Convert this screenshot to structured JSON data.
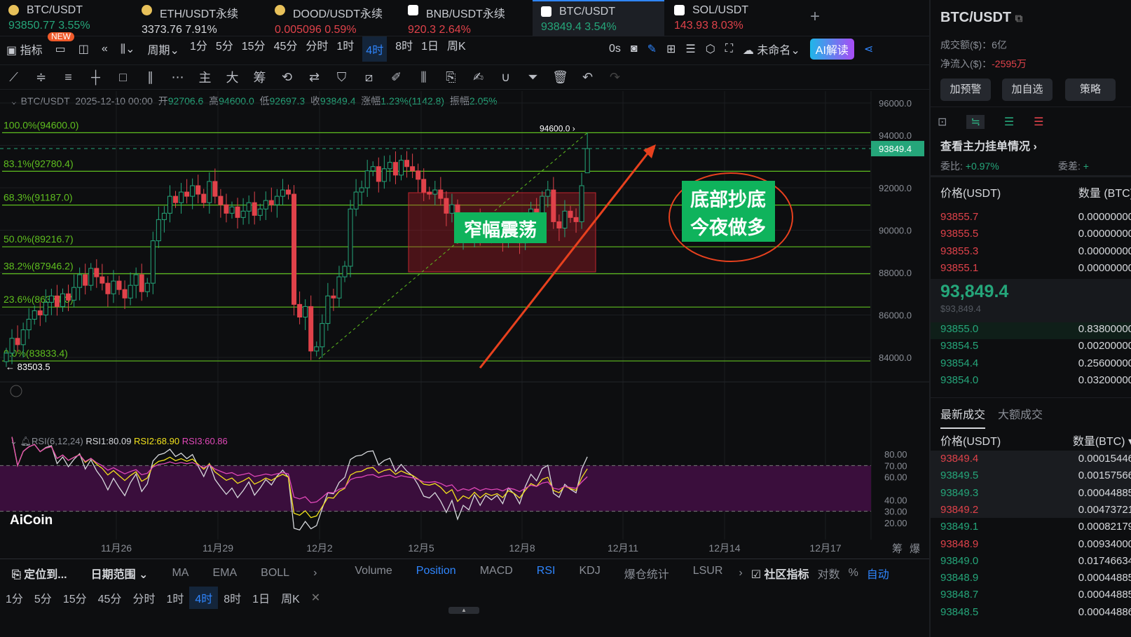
{
  "tabs": [
    {
      "name": "BTC/USDT",
      "price": "93850.77",
      "change": "3.55%",
      "color": "g",
      "icon": "coin-icon",
      "badge": "NEW"
    },
    {
      "name": "ETH/USDT永续",
      "price": "3373.76",
      "change": "7.91%",
      "color": "w",
      "icon": "coin-icon"
    },
    {
      "name": "DOOD/USDT永续",
      "price": "0.005096",
      "change": "0.59%",
      "color": "r",
      "icon": "coin-icon"
    },
    {
      "name": "BNB/USDT永续",
      "price": "920.3",
      "change": "2.64%",
      "color": "r",
      "icon": "exchange-icon"
    },
    {
      "name": "BTC/USDT",
      "price": "93849.4",
      "change": "3.54%",
      "color": "g",
      "icon": "exchange-icon",
      "active": true
    },
    {
      "name": "SOL/USDT",
      "price": "143.93",
      "change": "8.03%",
      "color": "r",
      "icon": "exchange-icon"
    }
  ],
  "toolbar": {
    "indicators": "指标",
    "period": "周期",
    "periods": [
      "1分",
      "5分",
      "15分",
      "45分",
      "分时",
      "1时",
      "4时",
      "8时",
      "1日",
      "周K"
    ],
    "active_period": "4时",
    "countdown": "0s",
    "layout_name": "未命名",
    "ai_button": "AI解读"
  },
  "drawing_toolbar": {
    "main": "主",
    "big": "大",
    "chips": "筹"
  },
  "chart_header": {
    "symbol": "BTC/USDT",
    "datetime": "2025-12-10 00:00",
    "open_label": "开",
    "open": "92706.6",
    "high_label": "高",
    "high": "94600.0",
    "low_label": "低",
    "low": "92697.3",
    "close_label": "收",
    "close": "93849.4",
    "change_label": "涨幅",
    "change": "1.23%(1142.8)",
    "amplitude_label": "振幅",
    "amplitude": "2.05%"
  },
  "chart_data": {
    "type": "candlestick",
    "price_axis": [
      "96000.0",
      "94000.0",
      "92000.0",
      "90000.0",
      "88000.0",
      "86000.0",
      "84000.0"
    ],
    "ylim": [
      83300,
      96300
    ],
    "date_labels": [
      "11月26",
      "11月29",
      "12月2",
      "12月5",
      "12月8",
      "12月11",
      "12月14",
      "12月17"
    ],
    "closes": [
      84200,
      84900,
      84600,
      85300,
      85800,
      86200,
      86000,
      86600,
      86900,
      86400,
      87000,
      86700,
      87300,
      87900,
      87400,
      88200,
      87800,
      87500,
      87000,
      87600,
      87200,
      86800,
      87400,
      87900,
      87100,
      87500,
      89500,
      90500,
      90800,
      91600,
      91300,
      91800,
      91600,
      92100,
      91700,
      91300,
      92300,
      91600,
      91200,
      90800,
      91100,
      90600,
      90900,
      91300,
      90700,
      91000,
      91400,
      91200,
      91600,
      91900,
      91700,
      86500,
      85900,
      86400,
      84300,
      84500,
      85600,
      86900,
      86800,
      87800,
      88300,
      91000,
      91800,
      92000,
      92800,
      93000,
      92300,
      92900,
      93200,
      92600,
      93300,
      93000,
      92800,
      92400,
      91800,
      91700,
      91900,
      91500,
      90800,
      91200,
      89600,
      90200,
      89800,
      90500,
      89700,
      90200,
      89900,
      90100,
      89600,
      90300,
      90000,
      89400,
      90200,
      91000,
      90700,
      91600,
      91900,
      90400,
      90100,
      90900,
      90600,
      90400,
      92100,
      93849.4
    ],
    "last_price": "93849.4",
    "high_marker": "94600.0",
    "low_marker": "83503.5",
    "fib_levels": [
      {
        "label": "100.0%(94600.0)",
        "price": 94600
      },
      {
        "label": "83.1%(92780.4)",
        "price": 92780.4
      },
      {
        "label": "68.3%(91187.0)",
        "price": 91187
      },
      {
        "label": "50.0%(89216.7)",
        "price": 89216.7
      },
      {
        "label": "38.2%(87946.2)",
        "price": 87946.2
      },
      {
        "label": "23.6%(86374.3)",
        "price": 86374.3
      },
      {
        "label": "0.0%(83833.4)",
        "price": 83833.4
      }
    ],
    "annotations": {
      "range_box": "窄幅震荡",
      "callout_line1": "底部抄底",
      "callout_line2": "今夜做多"
    },
    "colors": {
      "up": "#25a67a",
      "down": "#e0424a",
      "fib": "#5fbf1f",
      "annotation_bg": "#0fb35c",
      "arrow": "#e8411e"
    }
  },
  "rsi": {
    "title": "RSI(6,12,24)",
    "rsi1": "RSI1:80.09",
    "rsi2": "RSI2:68.90",
    "rsi3": "RSI3:60.86",
    "axis": [
      "80.00",
      "70.00",
      "60.00",
      "40.00",
      "30.00",
      "20.00"
    ],
    "colors": {
      "rsi1": "#d6d8dc",
      "rsi2": "#f2e21c",
      "rsi3": "#e048b8",
      "band": "#3a0e3c"
    }
  },
  "watermark": "AiCoin",
  "corner_labels": [
    "筹",
    "爆"
  ],
  "bottom_bar": {
    "locate": "定位到...",
    "date_range": "日期范围",
    "main_indicators": [
      "MA",
      "EMA",
      "BOLL"
    ],
    "sub_indicators": [
      "Volume",
      "Position",
      "MACD",
      "RSI",
      "KDJ",
      "爆仓统计",
      "LSUR"
    ],
    "active_sub": [
      "Position",
      "RSI"
    ],
    "community": "社区指标",
    "log": "对数",
    "percent": "%",
    "auto": "自动"
  },
  "bottom_periods": [
    "1分",
    "5分",
    "15分",
    "45分",
    "分时",
    "1时",
    "4时",
    "8时",
    "1日",
    "周K"
  ],
  "right_panel": {
    "symbol": "BTC/USDT",
    "volume_label": "成交额($)：",
    "volume": "6亿",
    "netflow_label": "净流入($)：",
    "netflow": "-2595万",
    "buttons": [
      "加预警",
      "加自选",
      "策略"
    ],
    "order_link": "查看主力挂单情况",
    "ratio_label": "委比:",
    "ratio": "+0.97%",
    "diff_label": "委差:",
    "diff": "+",
    "ob_headers": [
      "价格(USDT)",
      "数量 (BTC)"
    ],
    "asks": [
      [
        "93855.7",
        "0.00000000"
      ],
      [
        "93855.5",
        "0.00000000"
      ],
      [
        "93855.3",
        "0.00000000"
      ],
      [
        "93855.1",
        "0.00000000"
      ]
    ],
    "mid_price": "93,849.4",
    "mid_usd": "$93,849.4",
    "bids": [
      [
        "93855.0",
        "0.83800000"
      ],
      [
        "93854.5",
        "0.00200000"
      ],
      [
        "93854.4",
        "0.25600000"
      ],
      [
        "93854.0",
        "0.03200000"
      ]
    ],
    "trade_tabs": [
      "最新成交",
      "大额成交"
    ],
    "trade_headers": [
      "价格(USDT)",
      "数量(BTC)"
    ],
    "trades": [
      [
        "93849.4",
        "0.00015446",
        "r"
      ],
      [
        "93849.5",
        "0.00157566",
        "g"
      ],
      [
        "93849.3",
        "0.00044885",
        "g"
      ],
      [
        "93849.2",
        "0.00473721",
        "r"
      ],
      [
        "93849.1",
        "0.00082179",
        "g"
      ],
      [
        "93848.9",
        "0.00934000",
        "r"
      ],
      [
        "93849.0",
        "0.01746634",
        "g"
      ],
      [
        "93848.9",
        "0.00044885",
        "g"
      ],
      [
        "93848.7",
        "0.00044885",
        "g"
      ],
      [
        "93848.5",
        "0.00044886",
        "g"
      ]
    ]
  }
}
